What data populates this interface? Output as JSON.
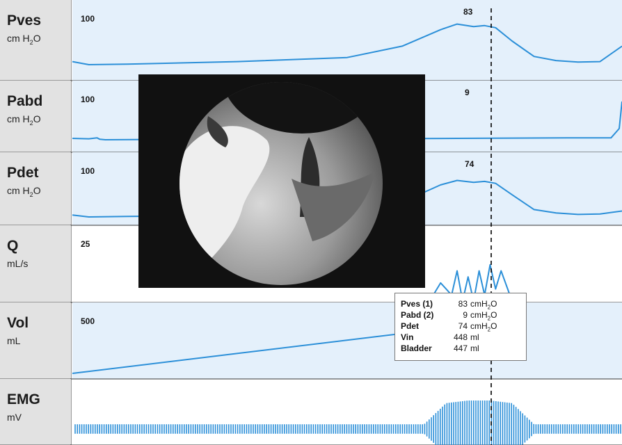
{
  "chart_data": {
    "type": "line",
    "title": "",
    "cursor": {
      "style": "dashed",
      "color": "#000000"
    },
    "channels": [
      {
        "name": "Pves",
        "unit_main": "cm H",
        "unit_sub": "2",
        "unit_tail": "O",
        "scale_label": "100",
        "cursor_value": "83",
        "series": {
          "name": "Pves",
          "color": "#2b8fd8",
          "t": [
            0,
            3,
            10,
            30,
            50,
            60,
            67,
            70,
            73,
            75,
            77,
            80,
            84,
            88,
            92,
            96,
            100
          ],
          "value": [
            10,
            4,
            5,
            10,
            18,
            40,
            72,
            83,
            78,
            80,
            76,
            50,
            20,
            12,
            9,
            10,
            40
          ]
        }
      },
      {
        "name": "Pabd",
        "unit_main": "cm H",
        "unit_sub": "2",
        "unit_tail": "O",
        "scale_label": "100",
        "cursor_value": "9",
        "series": {
          "name": "Pabd",
          "color": "#2b8fd8",
          "t": [
            0,
            3,
            4.5,
            5,
            6,
            20,
            50,
            70,
            90,
            98,
            99.5,
            100
          ],
          "value": [
            9,
            8,
            10,
            7,
            6,
            7,
            8,
            9,
            10,
            10,
            30,
            88
          ]
        }
      },
      {
        "name": "Pdet",
        "unit_main": "cm H",
        "unit_sub": "2",
        "unit_tail": "O",
        "scale_label": "100",
        "cursor_value": "74",
        "series": {
          "name": "Pdet",
          "color": "#2b8fd8",
          "t": [
            0,
            3,
            10,
            30,
            50,
            60,
            67,
            70,
            73,
            75,
            77,
            80,
            84,
            88,
            92,
            96,
            100
          ],
          "value": [
            4,
            0,
            1,
            3,
            8,
            30,
            65,
            74,
            70,
            72,
            68,
            45,
            15,
            8,
            5,
            6,
            12
          ]
        }
      },
      {
        "name": "Q",
        "unit_main": "mL/s",
        "unit_sub": "",
        "unit_tail": "",
        "scale_label": "25",
        "cursor_value": "",
        "series": {
          "name": "Q",
          "color": "#2b8fd8",
          "t": [
            65,
            67,
            69,
            70,
            71,
            72,
            73,
            74,
            75,
            76,
            77,
            78,
            80
          ],
          "value": [
            0,
            0.3,
            0.1,
            0.5,
            0,
            0.4,
            0,
            0.5,
            0.1,
            0.6,
            0.2,
            0.5,
            0
          ]
        }
      },
      {
        "name": "Vol",
        "unit_main": "mL",
        "unit_sub": "",
        "unit_tail": "",
        "scale_label": "500",
        "cursor_value": "448",
        "series": {
          "name": "Vol",
          "color": "#2b8fd8",
          "t": [
            0,
            75
          ],
          "value": [
            0,
            448
          ]
        }
      },
      {
        "name": "EMG",
        "unit_main": "mV",
        "unit_sub": "",
        "unit_tail": "",
        "scale_label": "",
        "cursor_value": "",
        "series": {
          "name": "EMG",
          "color": "#2b8fd8",
          "t": [
            0,
            64,
            66,
            68,
            72,
            76,
            80,
            82,
            84,
            100
          ],
          "value": [
            0.1,
            0.1,
            0.5,
            0.9,
            1.0,
            1.0,
            0.9,
            0.5,
            0.1,
            0.1
          ]
        }
      }
    ]
  },
  "infobox": {
    "rows": [
      {
        "key": "Pves (1)",
        "value": "83",
        "unit_main": "cmH",
        "unit_sub": "2",
        "unit_tail": "O"
      },
      {
        "key": "Pabd (2)",
        "value": "9",
        "unit_main": "cmH",
        "unit_sub": "2",
        "unit_tail": "O"
      },
      {
        "key": "Pdet",
        "value": "74",
        "unit_main": "cmH",
        "unit_sub": "2",
        "unit_tail": "O"
      },
      {
        "key": "Vin",
        "value": "448",
        "unit_main": "ml",
        "unit_sub": "",
        "unit_tail": ""
      },
      {
        "key": "Bladder",
        "value": "447",
        "unit_main": "ml",
        "unit_sub": "",
        "unit_tail": ""
      }
    ]
  }
}
